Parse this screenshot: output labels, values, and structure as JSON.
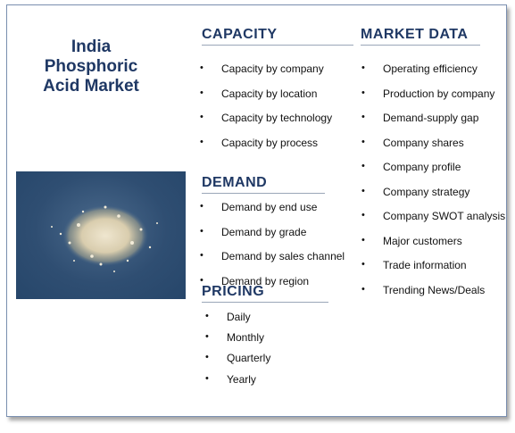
{
  "title": {
    "line1": "India",
    "line2": "Phosphoric",
    "line3": "Acid Market"
  },
  "capacity": {
    "heading": "CAPACITY",
    "items": [
      "Capacity by company",
      "Capacity by location",
      "Capacity by technology",
      "Capacity by process"
    ]
  },
  "demand": {
    "heading": "DEMAND",
    "items": [
      "Demand by end use",
      "Demand by grade",
      "Demand by sales channel",
      "Demand by region"
    ]
  },
  "pricing": {
    "heading": "PRICING",
    "items": [
      "Daily",
      "Monthly",
      "Quarterly",
      "Yearly"
    ]
  },
  "market_data": {
    "heading": "MARKET DATA",
    "items": [
      "Operating efficiency",
      "Production by company",
      "Demand-supply gap",
      "Company shares",
      "Company profile",
      "Company strategy",
      "Company SWOT analysis",
      "Major customers",
      "Trade information",
      "Trending News/Deals"
    ]
  },
  "colors": {
    "heading": "#1f3864",
    "border": "#7a8fb0"
  }
}
